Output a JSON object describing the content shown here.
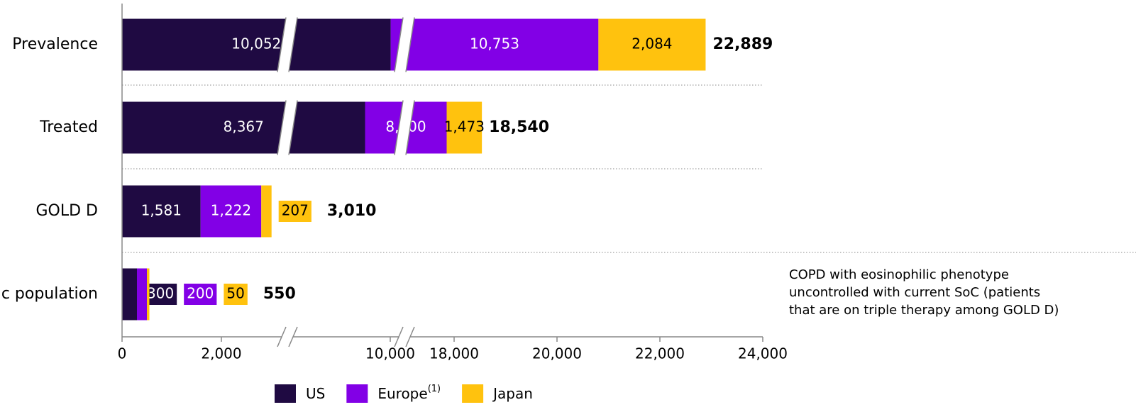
{
  "chart_data": {
    "type": "stacked_barh",
    "categories": [
      "Prevalence",
      "Treated",
      "GOLD D",
      "c population"
    ],
    "series": [
      {
        "name": "US",
        "color": "#1f0a42",
        "values": [
          10052,
          8367,
          1581,
          300
        ],
        "value_labels": [
          "10,052",
          "8,367",
          "1,581",
          "300"
        ]
      },
      {
        "name": "Europe",
        "note": "(1)",
        "color": "#8200e6",
        "values": [
          10753,
          8700,
          1222,
          200
        ],
        "value_labels": [
          "10,753",
          "8,700",
          "1,222",
          "200"
        ]
      },
      {
        "name": "Japan",
        "color": "#ffc20e",
        "values": [
          2084,
          1473,
          207,
          50
        ],
        "value_labels": [
          "2,084",
          "1,473",
          "207",
          "50"
        ]
      }
    ],
    "totals": [
      22889,
      18540,
      3010,
      550
    ],
    "total_labels": [
      "22,889",
      "18,540",
      "3,010",
      "550"
    ],
    "xlim": [
      0,
      24000
    ],
    "xticks": [
      0,
      {
        "value": 2000,
        "label": "2,000"
      },
      {
        "value": 10000,
        "label": "10,000"
      },
      {
        "value": 18000,
        "label": "18,000"
      },
      {
        "value": 20000,
        "label": "20,000"
      },
      {
        "value": 22000,
        "label": "22,000"
      },
      {
        "value": 24000,
        "label": "24,000"
      }
    ],
    "axis_breaks": true,
    "annotation": [
      "COPD with eosinophilic phenotype",
      "uncontrolled with current SoC (patients",
      "that are on triple therapy among GOLD D)"
    ],
    "legend": "bottom"
  }
}
